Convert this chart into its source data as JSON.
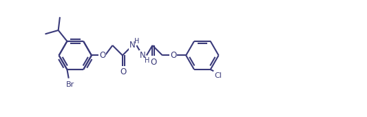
{
  "bg": "#ffffff",
  "lc": "#3a3a7a",
  "lw": 1.5,
  "fs": 7.5,
  "figsize": [
    5.33,
    1.7
  ],
  "dpi": 100,
  "xlim": [
    -0.5,
    10.8
  ],
  "ylim": [
    -0.5,
    3.2
  ]
}
